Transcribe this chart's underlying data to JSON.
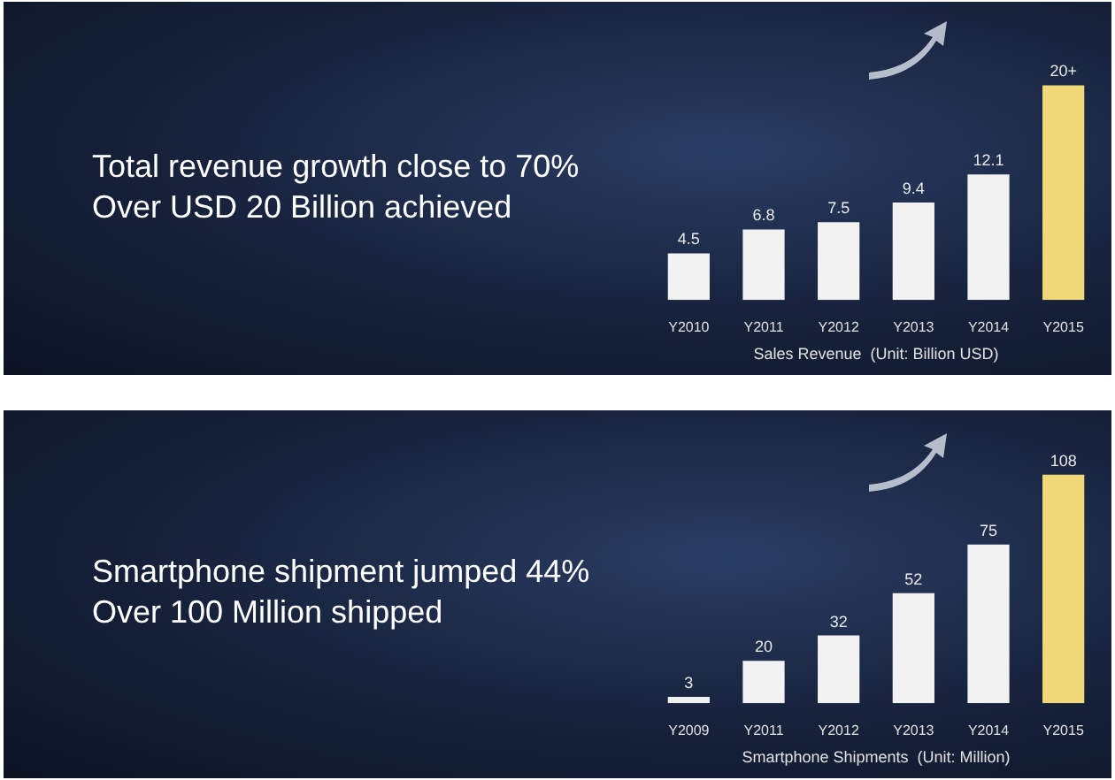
{
  "chart_data": [
    {
      "type": "bar",
      "title": "Total revenue growth close to 70%",
      "annotations": [
        "Over USD 20 Billion achieved"
      ],
      "xlabel": "Sales Revenue  (Unit: Billion USD)",
      "categories": [
        "Y2010",
        "Y2011",
        "Y2012",
        "Y2013",
        "Y2014",
        "Y2015"
      ],
      "values": [
        4.5,
        6.8,
        7.5,
        9.4,
        12.1,
        20.7
      ],
      "value_labels": [
        "4.5",
        "6.8",
        "7.5",
        "9.4",
        "12.1",
        "20+"
      ],
      "colors": [
        "#f2f2f2",
        "#f2f2f2",
        "#f2f2f2",
        "#f2f2f2",
        "#f2f2f2",
        "#f0d878"
      ]
    },
    {
      "type": "bar",
      "title": "Smartphone shipment jumped 44%",
      "annotations": [
        "Over 100 Million shipped"
      ],
      "xlabel": "Smartphone Shipments  (Unit: Million)",
      "categories": [
        "Y2009",
        "Y2011",
        "Y2012",
        "Y2013",
        "Y2014",
        "Y2015"
      ],
      "values": [
        3,
        20,
        32,
        52,
        75,
        108
      ],
      "data_labels": true,
      "colors": [
        "#f2f2f2",
        "#f2f2f2",
        "#f2f2f2",
        "#f2f2f2",
        "#f2f2f2",
        "#f0d878"
      ]
    }
  ]
}
